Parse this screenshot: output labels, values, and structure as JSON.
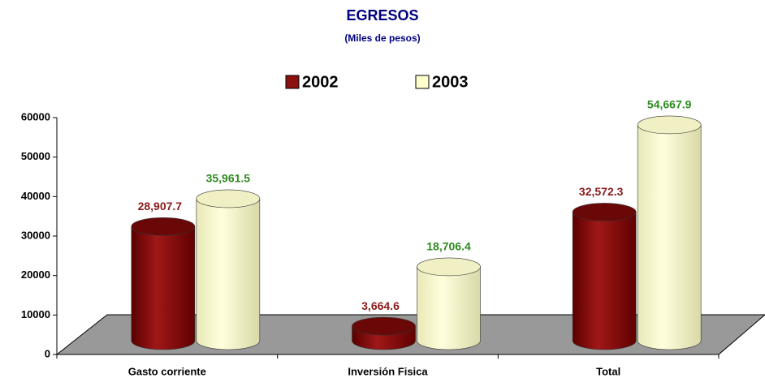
{
  "chart_data": {
    "type": "bar",
    "title": "EGRESOS",
    "subtitle": "(Miles de pesos)",
    "categories": [
      "Gasto corriente",
      "Inversión Fisica",
      "Total"
    ],
    "series": [
      {
        "name": "2002",
        "color": "#8b1010",
        "values": [
          28907.7,
          3664.6,
          32572.3
        ],
        "value_labels": [
          "28,907.7",
          "3,664.6",
          "32,572.3"
        ],
        "label_color": "#8b1a1a"
      },
      {
        "name": "2003",
        "color": "#ffffcc",
        "values": [
          35961.5,
          18706.4,
          54667.9
        ],
        "value_labels": [
          "35,961.5",
          "18,706.4",
          "54,667.9"
        ],
        "label_color": "#2e8b1e"
      }
    ],
    "ylim": [
      0,
      60000
    ],
    "yticks": [
      0,
      10000,
      20000,
      30000,
      40000,
      50000,
      60000
    ],
    "legend": "top"
  }
}
